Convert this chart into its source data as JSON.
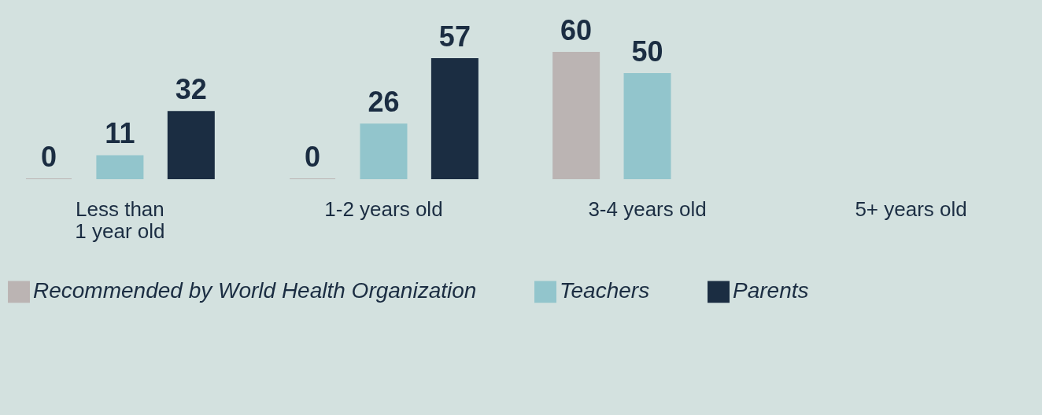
{
  "chart_data": {
    "type": "bar",
    "categories": [
      "Less than\n1 year old",
      "1-2 years old",
      "3-4 years old",
      "5+ years old"
    ],
    "series": [
      {
        "name": "Recommended by World Health Organization",
        "color": "#bbb4b3",
        "values": [
          0,
          0,
          60,
          null
        ]
      },
      {
        "name": "Teachers",
        "color": "#92c5cc",
        "values": [
          11,
          26,
          50,
          null
        ]
      },
      {
        "name": "Parents",
        "color": "#1b2d42",
        "values": [
          32,
          57,
          null,
          null
        ]
      }
    ],
    "ylim": [
      0,
      85
    ],
    "data_labels": true,
    "grid": false,
    "legend": "bottom"
  }
}
